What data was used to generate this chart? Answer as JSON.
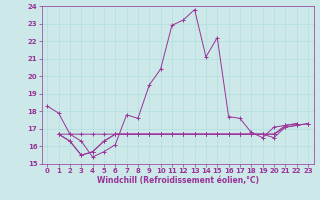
{
  "xlabel": "Windchill (Refroidissement éolien,°C)",
  "background_color": "#cce8e8",
  "line_color": "#993399",
  "xlim": [
    -0.5,
    23.5
  ],
  "ylim": [
    15,
    24
  ],
  "yticks": [
    15,
    16,
    17,
    18,
    19,
    20,
    21,
    22,
    23,
    24
  ],
  "xticks": [
    0,
    1,
    2,
    3,
    4,
    5,
    6,
    7,
    8,
    9,
    10,
    11,
    12,
    13,
    14,
    15,
    16,
    17,
    18,
    19,
    20,
    21,
    22,
    23
  ],
  "series": [
    {
      "x": [
        0,
        1,
        2,
        3,
        4,
        5,
        6,
        7,
        8,
        9,
        10,
        11,
        12,
        13,
        14,
        15,
        16,
        17,
        18,
        19,
        20,
        21,
        22
      ],
      "y": [
        18.3,
        17.9,
        16.7,
        16.3,
        15.4,
        15.7,
        16.1,
        17.8,
        17.6,
        19.5,
        20.4,
        22.9,
        23.2,
        23.8,
        21.1,
        22.2,
        17.7,
        17.6,
        16.8,
        16.5,
        17.1,
        17.2,
        17.3
      ]
    },
    {
      "x": [
        1,
        2,
        3,
        4,
        5,
        6,
        7,
        8,
        9,
        10,
        11,
        12,
        13,
        14,
        15,
        16,
        17,
        18,
        19,
        20,
        21,
        22,
        23
      ],
      "y": [
        16.7,
        16.3,
        15.5,
        15.7,
        16.3,
        16.7,
        16.7,
        16.7,
        16.7,
        16.7,
        16.7,
        16.7,
        16.7,
        16.7,
        16.7,
        16.7,
        16.7,
        16.7,
        16.7,
        16.7,
        17.1,
        17.2,
        17.3
      ]
    },
    {
      "x": [
        1,
        2,
        3,
        4,
        5,
        6,
        7,
        8,
        9,
        10,
        11,
        12,
        13,
        14,
        15,
        16,
        17,
        18,
        19,
        20,
        21,
        22,
        23
      ],
      "y": [
        16.7,
        16.3,
        15.5,
        15.7,
        16.3,
        16.7,
        16.7,
        16.7,
        16.7,
        16.7,
        16.7,
        16.7,
        16.7,
        16.7,
        16.7,
        16.7,
        16.7,
        16.7,
        16.7,
        16.5,
        17.1,
        17.2,
        17.3
      ]
    },
    {
      "x": [
        1,
        2,
        3,
        4,
        5,
        6,
        7,
        8,
        9,
        10,
        11,
        12,
        13,
        14,
        15,
        16,
        17,
        18,
        19,
        20,
        21,
        22
      ],
      "y": [
        16.7,
        16.7,
        16.7,
        16.7,
        16.7,
        16.7,
        16.7,
        16.7,
        16.7,
        16.7,
        16.7,
        16.7,
        16.7,
        16.7,
        16.7,
        16.7,
        16.7,
        16.7,
        16.7,
        16.7,
        17.2,
        17.3
      ]
    }
  ],
  "tick_fontsize": 5,
  "xlabel_fontsize": 5.5,
  "xlabel_fontweight": "bold",
  "grid_color": "#aadddd",
  "spine_color": "#993399"
}
